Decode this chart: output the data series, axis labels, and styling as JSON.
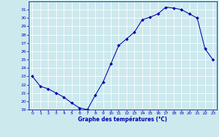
{
  "hours": [
    0,
    1,
    2,
    3,
    4,
    5,
    6,
    7,
    8,
    9,
    10,
    11,
    12,
    13,
    14,
    15,
    16,
    17,
    18,
    19,
    20,
    21,
    22,
    23
  ],
  "temps": [
    23.0,
    21.8,
    21.5,
    21.0,
    20.5,
    19.8,
    19.2,
    19.0,
    20.7,
    22.3,
    24.5,
    26.7,
    27.5,
    28.3,
    29.8,
    30.1,
    30.5,
    31.3,
    31.2,
    31.0,
    30.5,
    30.0,
    26.3,
    25.0
  ],
  "line_color": "#0000aa",
  "marker": "D",
  "marker_size": 2.0,
  "bg_color": "#cce9ee",
  "grid_color": "#ffffff",
  "label_color": "#0000aa",
  "xlabel": "Graphe des températures (°C)",
  "ylim": [
    19,
    32
  ],
  "yticks": [
    19,
    20,
    21,
    22,
    23,
    24,
    25,
    26,
    27,
    28,
    29,
    30,
    31
  ],
  "xlim": [
    -0.5,
    23.5
  ],
  "xticks": [
    0,
    1,
    2,
    3,
    4,
    5,
    6,
    7,
    8,
    9,
    10,
    11,
    12,
    13,
    14,
    15,
    16,
    17,
    18,
    19,
    20,
    21,
    22,
    23
  ]
}
